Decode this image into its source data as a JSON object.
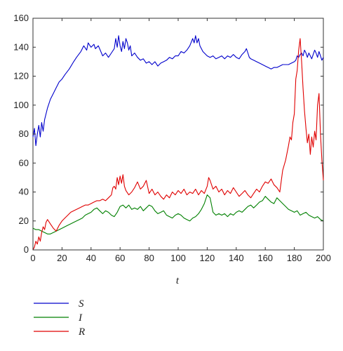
{
  "chart_data": {
    "type": "line",
    "title": "",
    "xlabel": "t",
    "ylabel": "",
    "xlim": [
      0,
      200
    ],
    "ylim": [
      0,
      160
    ],
    "xticks": [
      0,
      20,
      40,
      60,
      80,
      100,
      120,
      140,
      160,
      180,
      200
    ],
    "yticks": [
      0,
      20,
      40,
      60,
      80,
      100,
      120,
      140,
      160
    ],
    "grid": false,
    "legend_position": "bottom-left",
    "series": [
      {
        "name": "S",
        "color": "#0000cc",
        "x": [
          0,
          1,
          2,
          3,
          4,
          5,
          6,
          7,
          8,
          10,
          12,
          14,
          16,
          18,
          20,
          22,
          25,
          28,
          30,
          33,
          35,
          37,
          38,
          40,
          42,
          43,
          45,
          48,
          50,
          52,
          54,
          56,
          57,
          58,
          59,
          60,
          61,
          62,
          63,
          64,
          65,
          66,
          67,
          68,
          70,
          72,
          74,
          76,
          78,
          80,
          82,
          84,
          86,
          88,
          90,
          92,
          94,
          96,
          98,
          100,
          102,
          104,
          106,
          108,
          110,
          111,
          112,
          113,
          114,
          115,
          116,
          117,
          118,
          120,
          122,
          124,
          126,
          128,
          130,
          132,
          134,
          136,
          138,
          140,
          142,
          144,
          146,
          147,
          148,
          149,
          150,
          152,
          154,
          156,
          158,
          160,
          162,
          164,
          166,
          168,
          170,
          172,
          174,
          176,
          178,
          180,
          181,
          182,
          183,
          184,
          185,
          186,
          187,
          188,
          189,
          190,
          191,
          192,
          193,
          194,
          195,
          196,
          197,
          198,
          199,
          200
        ],
        "y": [
          78,
          84,
          72,
          80,
          86,
          78,
          88,
          82,
          90,
          98,
          104,
          108,
          112,
          116,
          118,
          121,
          125,
          130,
          133,
          137,
          141,
          138,
          143,
          140,
          142,
          139,
          141,
          134,
          136,
          133,
          136,
          139,
          146,
          140,
          148,
          141,
          137,
          144,
          139,
          146,
          143,
          138,
          141,
          134,
          136,
          133,
          131,
          132,
          129,
          130,
          128,
          130,
          127,
          129,
          130,
          131,
          133,
          132,
          134,
          134,
          137,
          136,
          138,
          141,
          146,
          143,
          148,
          143,
          146,
          141,
          139,
          137,
          136,
          134,
          133,
          134,
          132,
          133,
          134,
          132,
          134,
          133,
          135,
          133,
          132,
          135,
          137,
          139,
          136,
          133,
          132,
          131,
          130,
          129,
          128,
          127,
          126,
          125,
          126,
          126,
          127,
          128,
          128,
          128,
          129,
          130,
          131,
          134,
          133,
          135,
          136,
          134,
          138,
          136,
          133,
          136,
          134,
          132,
          135,
          138,
          136,
          133,
          137,
          134,
          131,
          133
        ]
      },
      {
        "name": "I",
        "color": "#008000",
        "x": [
          0,
          2,
          4,
          6,
          8,
          10,
          12,
          14,
          16,
          18,
          20,
          22,
          24,
          26,
          28,
          30,
          32,
          34,
          36,
          38,
          40,
          42,
          44,
          46,
          48,
          50,
          52,
          54,
          56,
          58,
          60,
          62,
          64,
          66,
          68,
          70,
          72,
          74,
          76,
          78,
          80,
          82,
          84,
          86,
          88,
          90,
          92,
          94,
          96,
          98,
          100,
          102,
          104,
          106,
          108,
          110,
          112,
          114,
          116,
          118,
          120,
          122,
          124,
          126,
          128,
          130,
          132,
          134,
          136,
          138,
          140,
          142,
          144,
          146,
          148,
          150,
          152,
          154,
          156,
          158,
          160,
          162,
          164,
          166,
          168,
          170,
          172,
          174,
          176,
          178,
          180,
          182,
          184,
          186,
          188,
          190,
          192,
          194,
          196,
          198,
          200
        ],
        "y": [
          15,
          14,
          14,
          13,
          12,
          11,
          11,
          12,
          13,
          14,
          15,
          16,
          17,
          18,
          19,
          20,
          21,
          22,
          24,
          25,
          26,
          28,
          29,
          27,
          25,
          27,
          26,
          24,
          23,
          26,
          30,
          31,
          29,
          31,
          28,
          29,
          28,
          30,
          27,
          29,
          31,
          30,
          27,
          25,
          26,
          27,
          24,
          23,
          22,
          24,
          25,
          24,
          22,
          21,
          20,
          22,
          23,
          25,
          28,
          32,
          38,
          36,
          26,
          24,
          25,
          24,
          25,
          23,
          25,
          24,
          26,
          27,
          26,
          28,
          30,
          31,
          29,
          31,
          33,
          34,
          37,
          35,
          33,
          32,
          36,
          34,
          32,
          30,
          28,
          27,
          26,
          27,
          24,
          25,
          26,
          24,
          23,
          22,
          23,
          21,
          20
        ]
      },
      {
        "name": "R",
        "color": "#e00000",
        "x": [
          0,
          1,
          2,
          3,
          4,
          5,
          6,
          7,
          8,
          9,
          10,
          12,
          14,
          16,
          18,
          20,
          22,
          24,
          26,
          28,
          30,
          32,
          34,
          36,
          38,
          40,
          42,
          44,
          46,
          48,
          50,
          52,
          54,
          55,
          56,
          57,
          58,
          59,
          60,
          61,
          62,
          63,
          64,
          66,
          68,
          70,
          72,
          74,
          76,
          78,
          80,
          82,
          84,
          86,
          88,
          90,
          92,
          94,
          96,
          98,
          100,
          102,
          104,
          106,
          108,
          110,
          112,
          114,
          116,
          118,
          120,
          121,
          122,
          124,
          126,
          128,
          130,
          132,
          134,
          136,
          138,
          140,
          142,
          144,
          146,
          148,
          150,
          152,
          154,
          156,
          158,
          160,
          162,
          164,
          166,
          168,
          170,
          172,
          174,
          176,
          177,
          178,
          179,
          180,
          181,
          182,
          183,
          184,
          185,
          186,
          187,
          188,
          189,
          190,
          191,
          192,
          193,
          194,
          195,
          196,
          197,
          198,
          199,
          200
        ],
        "y": [
          0,
          2,
          6,
          4,
          9,
          6,
          12,
          16,
          14,
          19,
          21,
          18,
          15,
          13,
          17,
          20,
          22,
          24,
          26,
          27,
          28,
          29,
          30,
          31,
          31,
          32,
          33,
          34,
          34,
          35,
          34,
          36,
          38,
          43,
          44,
          42,
          50,
          45,
          51,
          46,
          52,
          44,
          41,
          38,
          40,
          43,
          47,
          42,
          44,
          48,
          39,
          42,
          38,
          40,
          37,
          35,
          38,
          36,
          40,
          38,
          41,
          39,
          42,
          38,
          40,
          39,
          42,
          38,
          41,
          39,
          44,
          50,
          48,
          42,
          44,
          40,
          42,
          38,
          41,
          39,
          43,
          40,
          37,
          39,
          41,
          38,
          36,
          39,
          42,
          40,
          44,
          47,
          46,
          49,
          45,
          43,
          40,
          55,
          62,
          72,
          78,
          76,
          88,
          94,
          118,
          124,
          138,
          146,
          130,
          112,
          96,
          84,
          74,
          80,
          66,
          78,
          71,
          82,
          76,
          100,
          108,
          80,
          62,
          48
        ]
      }
    ]
  }
}
